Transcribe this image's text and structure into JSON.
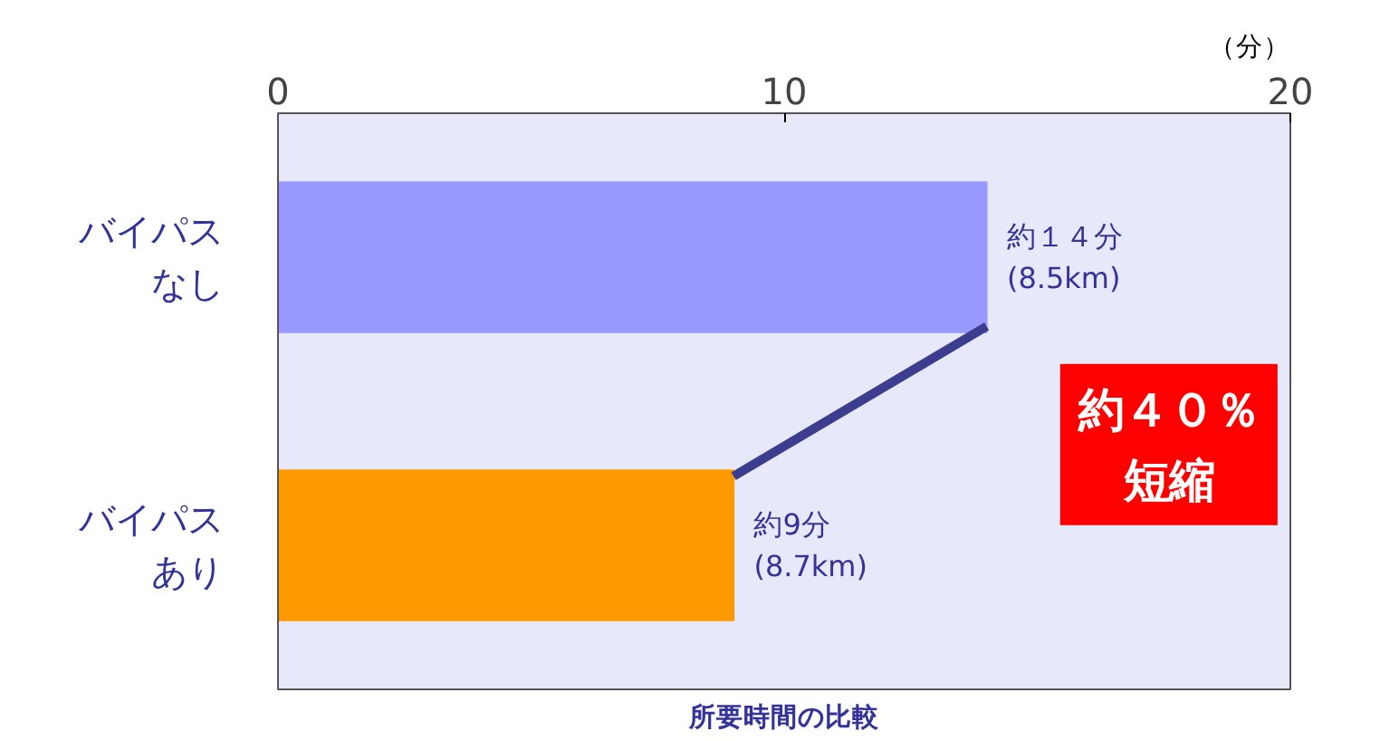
{
  "chart_data": {
    "type": "bar",
    "orientation": "horizontal",
    "title": "所要時間の比較",
    "categories": [
      "バイパスなし",
      "バイパスあり"
    ],
    "values": [
      14,
      9
    ],
    "colors": [
      "#9999ff",
      "#ff9900"
    ],
    "value_labels": [
      "約１４分\n(8.5km)",
      "約9分\n(8.7km)"
    ],
    "xlim": [
      0,
      20
    ],
    "xticks": [
      0,
      10,
      20
    ],
    "annotations": [
      "（分）",
      "約４０％短縮"
    ]
  }
}
